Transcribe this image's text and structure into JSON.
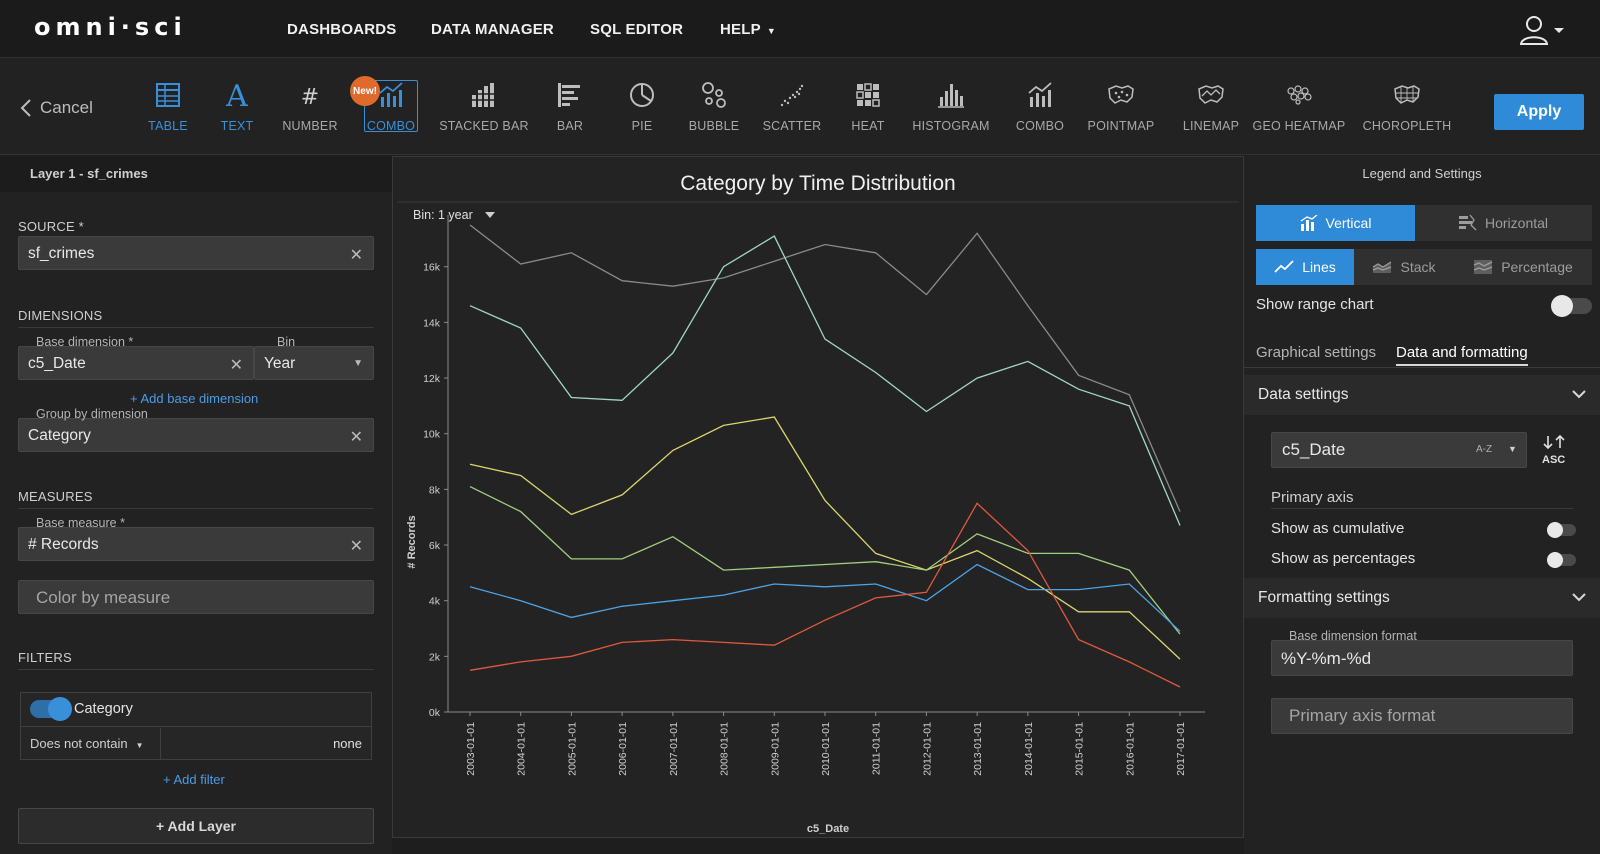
{
  "brand": "omni·sci",
  "nav": {
    "dashboards": "DASHBOARDS",
    "data_manager": "DATA MANAGER",
    "sql_editor": "SQL EDITOR",
    "help": "HELP"
  },
  "toolbar": {
    "cancel": "Cancel",
    "apply": "Apply",
    "new_badge": "New!",
    "chart_types": [
      {
        "label": "TABLE",
        "icon": "table-icon"
      },
      {
        "label": "TEXT",
        "icon": "text-icon"
      },
      {
        "label": "NUMBER",
        "icon": "number-icon"
      },
      {
        "label": "COMBO",
        "icon": "combo-icon"
      },
      {
        "label": "STACKED BAR",
        "icon": "stacked-bar-icon"
      },
      {
        "label": "BAR",
        "icon": "bar-icon"
      },
      {
        "label": "PIE",
        "icon": "pie-icon"
      },
      {
        "label": "BUBBLE",
        "icon": "bubble-icon"
      },
      {
        "label": "SCATTER",
        "icon": "scatter-icon"
      },
      {
        "label": "HEAT",
        "icon": "heat-icon"
      },
      {
        "label": "HISTOGRAM",
        "icon": "histogram-icon"
      },
      {
        "label": "COMBO",
        "icon": "combo-icon"
      },
      {
        "label": "POINTMAP",
        "icon": "pointmap-icon"
      },
      {
        "label": "LINEMAP",
        "icon": "linemap-icon"
      },
      {
        "label": "GEO HEATMAP",
        "icon": "geo-heatmap-icon"
      },
      {
        "label": "CHOROPLETH",
        "icon": "choropleth-icon"
      }
    ]
  },
  "left": {
    "layer_title": "Layer 1 - sf_crimes",
    "source_title": "SOURCE *",
    "source_value": "sf_crimes",
    "dimensions_title": "DIMENSIONS",
    "base_dim_label": "Base dimension *",
    "base_dim_value": "c5_Date",
    "bin_label": "Bin",
    "bin_value": "Year",
    "add_base_dim": "+ Add base dimension",
    "group_label": "Group by dimension",
    "group_value": "Category",
    "measures_title": "MEASURES",
    "base_measure_label": "Base measure *",
    "base_measure_value": "# Records",
    "color_by_measure": "Color by measure",
    "filters_title": "FILTERS",
    "filter_name": "Category",
    "filter_op": "Does not contain",
    "filter_value": "none",
    "add_filter": "+ Add filter",
    "add_layer": "+ Add Layer"
  },
  "chart_data": {
    "type": "line",
    "title": "Category by Time Distribution",
    "bin_control": "Bin: 1 year",
    "xlabel": "c5_Date",
    "ylabel": "# Records",
    "x": [
      "2003-01-01",
      "2004-01-01",
      "2005-01-01",
      "2006-01-01",
      "2007-01-01",
      "2008-01-01",
      "2009-01-01",
      "2010-01-01",
      "2011-01-01",
      "2012-01-01",
      "2013-01-01",
      "2014-01-01",
      "2015-01-01",
      "2016-01-01",
      "2017-01-01"
    ],
    "ylim": [
      0,
      17500
    ],
    "yticks": [
      0,
      2000,
      4000,
      6000,
      8000,
      10000,
      12000,
      14000,
      16000
    ],
    "ytick_labels": [
      "0k",
      "2k",
      "4k",
      "6k",
      "8k",
      "10k",
      "12k",
      "14k",
      "16k"
    ],
    "grid": false,
    "series": [
      {
        "color": "#8a8a8a",
        "values": [
          17500,
          16100,
          16500,
          15500,
          15300,
          15600,
          16200,
          16800,
          16500,
          15000,
          17200,
          14600,
          12100,
          11400,
          7200
        ]
      },
      {
        "color": "#9fd8c8",
        "values": [
          14600,
          13800,
          11300,
          11200,
          12900,
          16000,
          17100,
          13400,
          12200,
          10800,
          12000,
          12600,
          11600,
          11000,
          6700
        ]
      },
      {
        "color": "#d9d66e",
        "values": [
          8900,
          8500,
          7100,
          7800,
          9400,
          10300,
          10600,
          7600,
          5700,
          5100,
          5800,
          4800,
          3600,
          3600,
          1900
        ]
      },
      {
        "color": "#a2cf7e",
        "values": [
          8100,
          7200,
          5500,
          5500,
          6300,
          5100,
          5200,
          5300,
          5400,
          5100,
          6400,
          5700,
          5700,
          5100,
          2800
        ]
      },
      {
        "color": "#4da3e6",
        "values": [
          4500,
          4000,
          3400,
          3800,
          4000,
          4200,
          4600,
          4500,
          4600,
          4000,
          5300,
          4400,
          4400,
          4600,
          2900
        ]
      },
      {
        "color": "#e0593f",
        "values": [
          1500,
          1800,
          2000,
          2500,
          2600,
          2500,
          2400,
          3300,
          4100,
          4300,
          7500,
          5800,
          2600,
          1800,
          900
        ]
      }
    ]
  },
  "right": {
    "title": "Legend and Settings",
    "vertical": "Vertical",
    "horizontal": "Horizontal",
    "lines": "Lines",
    "stack": "Stack",
    "percentage": "Percentage",
    "show_range_chart": "Show range chart",
    "tab_graphical": "Graphical settings",
    "tab_data": "Data and formatting",
    "data_settings": "Data settings",
    "sort_field": "c5_Date",
    "sort_az": "A-Z",
    "sort_dir": "ASC",
    "primary_axis": "Primary axis",
    "show_cumulative": "Show as cumulative",
    "show_percentages": "Show as percentages",
    "formatting_settings": "Formatting settings",
    "base_dim_format_label": "Base dimension format",
    "base_dim_format_value": "%Y-%m-%d",
    "primary_axis_format": "Primary axis format"
  },
  "colors": {
    "accent": "#2f8ad8",
    "badge": "#e06a2c",
    "background": "#1e1e1e"
  }
}
